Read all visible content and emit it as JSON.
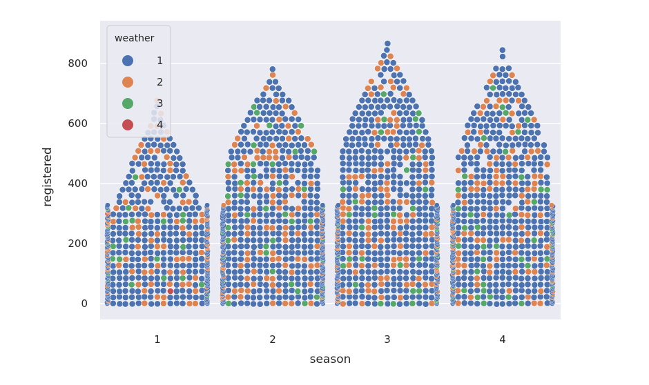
{
  "chart_data": {
    "type": "scatter",
    "subtype": "swarm",
    "title": "",
    "xlabel": "season",
    "ylabel": "registered",
    "categories": [
      "1",
      "2",
      "3",
      "4"
    ],
    "ylim": [
      -60,
      940
    ],
    "yticks": [
      0,
      200,
      400,
      600,
      800
    ],
    "grid": true,
    "legend": {
      "title": "weather",
      "placement": "top-left",
      "entries": [
        {
          "label": "1",
          "color": "#4c72b0"
        },
        {
          "label": "2",
          "color": "#dd8452"
        },
        {
          "label": "3",
          "color": "#55a868"
        },
        {
          "label": "4",
          "color": "#c44e52"
        }
      ]
    },
    "colors": {
      "background": "#eaeaf2",
      "grid": "#ffffff"
    },
    "series_summary": [
      {
        "season": "1",
        "min": 0,
        "max": 690,
        "weather_values_present": [
          "1",
          "2",
          "3",
          "4"
        ]
      },
      {
        "season": "2",
        "min": 0,
        "max": 785,
        "weather_values_present": [
          "1",
          "2",
          "3"
        ]
      },
      {
        "season": "3",
        "min": 0,
        "max": 885,
        "weather_values_present": [
          "1",
          "2",
          "3"
        ]
      },
      {
        "season": "4",
        "min": 0,
        "max": 855,
        "weather_values_present": [
          "1",
          "2",
          "3"
        ]
      }
    ]
  }
}
